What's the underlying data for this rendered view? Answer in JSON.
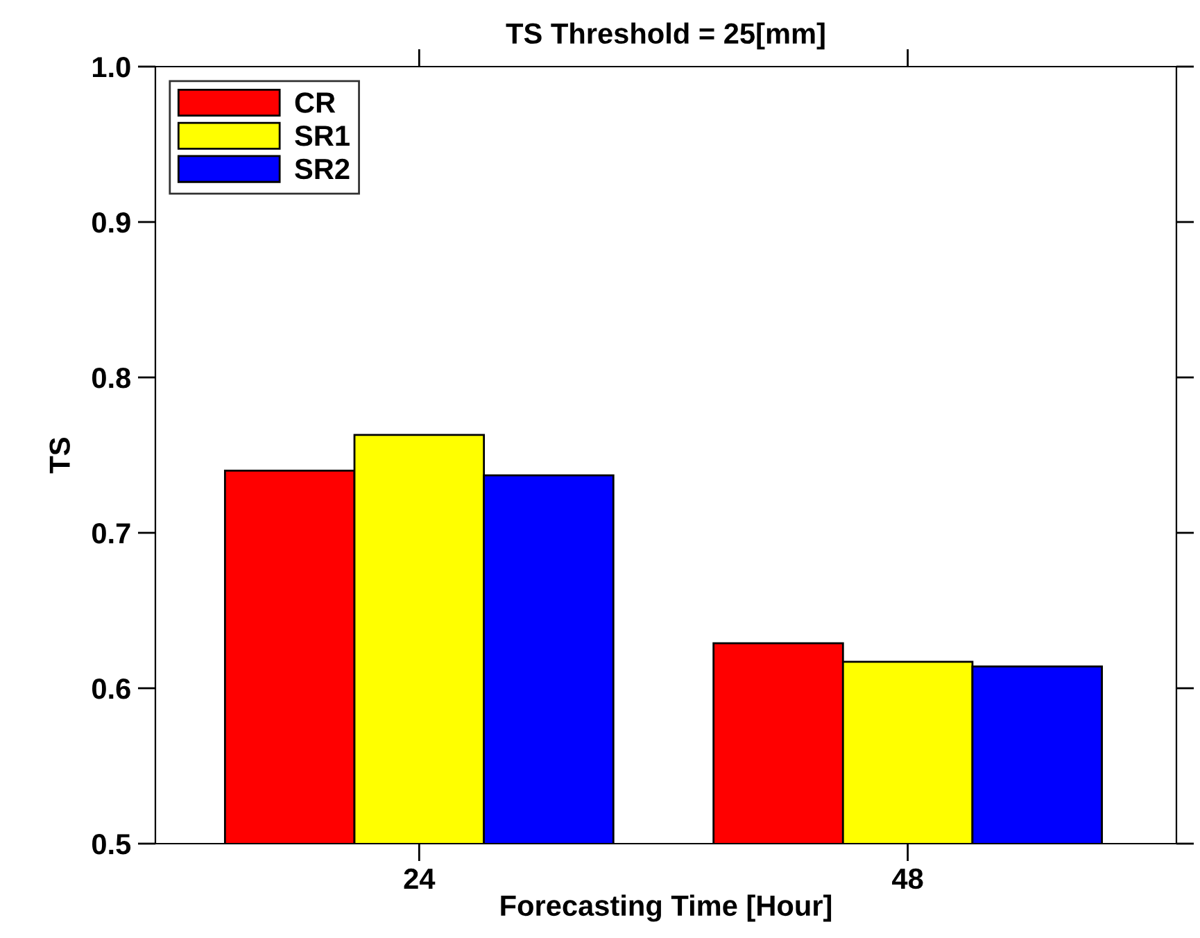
{
  "chart_data": {
    "type": "bar",
    "title": "TS Threshold = 25[mm]",
    "xlabel": "Forecasting Time [Hour]",
    "ylabel": "TS",
    "categories": [
      "24",
      "48"
    ],
    "series": [
      {
        "name": "CR",
        "color": "#ff0000",
        "values": [
          0.74,
          0.629
        ]
      },
      {
        "name": "SR1",
        "color": "#ffff00",
        "values": [
          0.763,
          0.617
        ]
      },
      {
        "name": "SR2",
        "color": "#0000ff",
        "values": [
          0.737,
          0.614
        ]
      }
    ],
    "ylim": [
      0.5,
      1.0
    ],
    "yticks": [
      0.5,
      0.6,
      0.7,
      0.8,
      0.9,
      {
        "value": 1.0,
        "label": "1.0"
      }
    ],
    "grid": false,
    "legend": "top left"
  }
}
